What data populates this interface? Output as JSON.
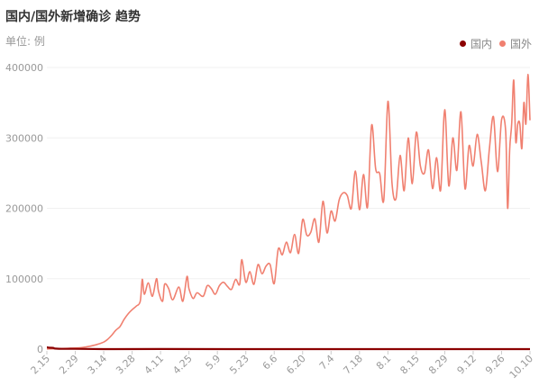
{
  "header": {
    "title": "国内/国外新增确诊 趋势",
    "unit": "单位: 例"
  },
  "legend": [
    {
      "label": "国内",
      "color": "#8b0000"
    },
    {
      "label": "国外",
      "color": "#f08070"
    }
  ],
  "chart_data": {
    "type": "line",
    "title": "国内/国外新增确诊 趋势",
    "ylabel": "单位: 例",
    "ylim": [
      0,
      400000
    ],
    "yticks": [
      "0",
      "100000",
      "200000",
      "300000",
      "400000"
    ],
    "xticks": [
      "2.15",
      "2.29",
      "3.14",
      "3.28",
      "4.11",
      "4.25",
      "5.9",
      "5.23",
      "6.6",
      "6.20",
      "7.4",
      "7.18",
      "8.1",
      "8.15",
      "8.29",
      "9.12",
      "9.26",
      "10.10"
    ],
    "x_start": "2020-02-15",
    "x_end": "2020-10-10",
    "grid": true,
    "legend_position": "top-right",
    "series": [
      {
        "name": "国内",
        "color": "#8b0000",
        "x": [
          "2020-02-15",
          "2020-02-16",
          "2020-02-17",
          "2020-02-18",
          "2020-02-19",
          "2020-02-21",
          "2020-02-24",
          "2020-02-29",
          "2020-03-14",
          "2020-04-11",
          "2020-06-06",
          "2020-08-01",
          "2020-09-12",
          "2020-10-10"
        ],
        "values": [
          2600,
          2000,
          1900,
          1750,
          800,
          500,
          400,
          400,
          20,
          100,
          10,
          60,
          15,
          20
        ]
      },
      {
        "name": "国外",
        "color": "#f08070",
        "x": [
          "2020-02-15",
          "2020-02-29",
          "2020-03-05",
          "2020-03-10",
          "2020-03-14",
          "2020-03-16",
          "2020-03-18",
          "2020-03-20",
          "2020-03-22",
          "2020-03-24",
          "2020-03-26",
          "2020-03-28",
          "2020-03-30",
          "2020-04-01",
          "2020-04-02",
          "2020-04-03",
          "2020-04-05",
          "2020-04-07",
          "2020-04-09",
          "2020-04-10",
          "2020-04-12",
          "2020-04-13",
          "2020-04-15",
          "2020-04-17",
          "2020-04-20",
          "2020-04-22",
          "2020-04-24",
          "2020-04-25",
          "2020-04-27",
          "2020-04-29",
          "2020-05-02",
          "2020-05-04",
          "2020-05-06",
          "2020-05-08",
          "2020-05-10",
          "2020-05-12",
          "2020-05-14",
          "2020-05-16",
          "2020-05-18",
          "2020-05-20",
          "2020-05-21",
          "2020-05-23",
          "2020-05-25",
          "2020-05-27",
          "2020-05-29",
          "2020-05-31",
          "2020-06-02",
          "2020-06-04",
          "2020-06-06",
          "2020-06-08",
          "2020-06-10",
          "2020-06-12",
          "2020-06-14",
          "2020-06-16",
          "2020-06-18",
          "2020-06-20",
          "2020-06-22",
          "2020-06-24",
          "2020-06-26",
          "2020-06-28",
          "2020-06-30",
          "2020-07-02",
          "2020-07-04",
          "2020-07-06",
          "2020-07-08",
          "2020-07-10",
          "2020-07-12",
          "2020-07-14",
          "2020-07-16",
          "2020-07-18",
          "2020-07-20",
          "2020-07-22",
          "2020-07-24",
          "2020-07-26",
          "2020-07-28",
          "2020-07-30",
          "2020-08-01",
          "2020-08-03",
          "2020-08-05",
          "2020-08-07",
          "2020-08-09",
          "2020-08-11",
          "2020-08-13",
          "2020-08-15",
          "2020-08-17",
          "2020-08-19",
          "2020-08-21",
          "2020-08-23",
          "2020-08-25",
          "2020-08-27",
          "2020-08-29",
          "2020-08-31",
          "2020-09-02",
          "2020-09-04",
          "2020-09-06",
          "2020-09-08",
          "2020-09-10",
          "2020-09-12",
          "2020-09-14",
          "2020-09-16",
          "2020-09-18",
          "2020-09-20",
          "2020-09-22",
          "2020-09-24",
          "2020-09-26",
          "2020-09-28",
          "2020-09-29",
          "2020-09-30",
          "2020-10-01",
          "2020-10-02",
          "2020-10-03",
          "2020-10-04",
          "2020-10-05",
          "2020-10-06",
          "2020-10-07",
          "2020-10-08",
          "2020-10-09",
          "2020-10-10"
        ],
        "values": [
          200,
          1500,
          3000,
          6000,
          10000,
          14000,
          20000,
          27000,
          32000,
          42000,
          50000,
          56000,
          61000,
          68000,
          99000,
          78000,
          94000,
          75000,
          100000,
          82000,
          68000,
          92000,
          86000,
          70000,
          88000,
          68000,
          103000,
          86000,
          72000,
          80000,
          75000,
          90000,
          86000,
          78000,
          90000,
          95000,
          89000,
          85000,
          99000,
          92000,
          127000,
          95000,
          110000,
          92000,
          120000,
          107000,
          118000,
          120000,
          93000,
          142000,
          134000,
          152000,
          137000,
          163000,
          136000,
          184000,
          162000,
          166000,
          185000,
          152000,
          210000,
          165000,
          196000,
          182000,
          212000,
          222000,
          218000,
          200000,
          253000,
          198000,
          248000,
          202000,
          318000,
          256000,
          249000,
          212000,
          352000,
          236000,
          214000,
          275000,
          225000,
          300000,
          235000,
          308000,
          260000,
          250000,
          283000,
          228000,
          272000,
          226000,
          340000,
          232000,
          300000,
          254000,
          337000,
          228000,
          289000,
          260000,
          305000,
          266000,
          225000,
          285000,
          330000,
          252000,
          326000,
          310000,
          200000,
          284000,
          320000,
          382000,
          295000,
          320000,
          320000,
          285000,
          350000,
          320000,
          390000,
          325000
        ]
      }
    ]
  }
}
